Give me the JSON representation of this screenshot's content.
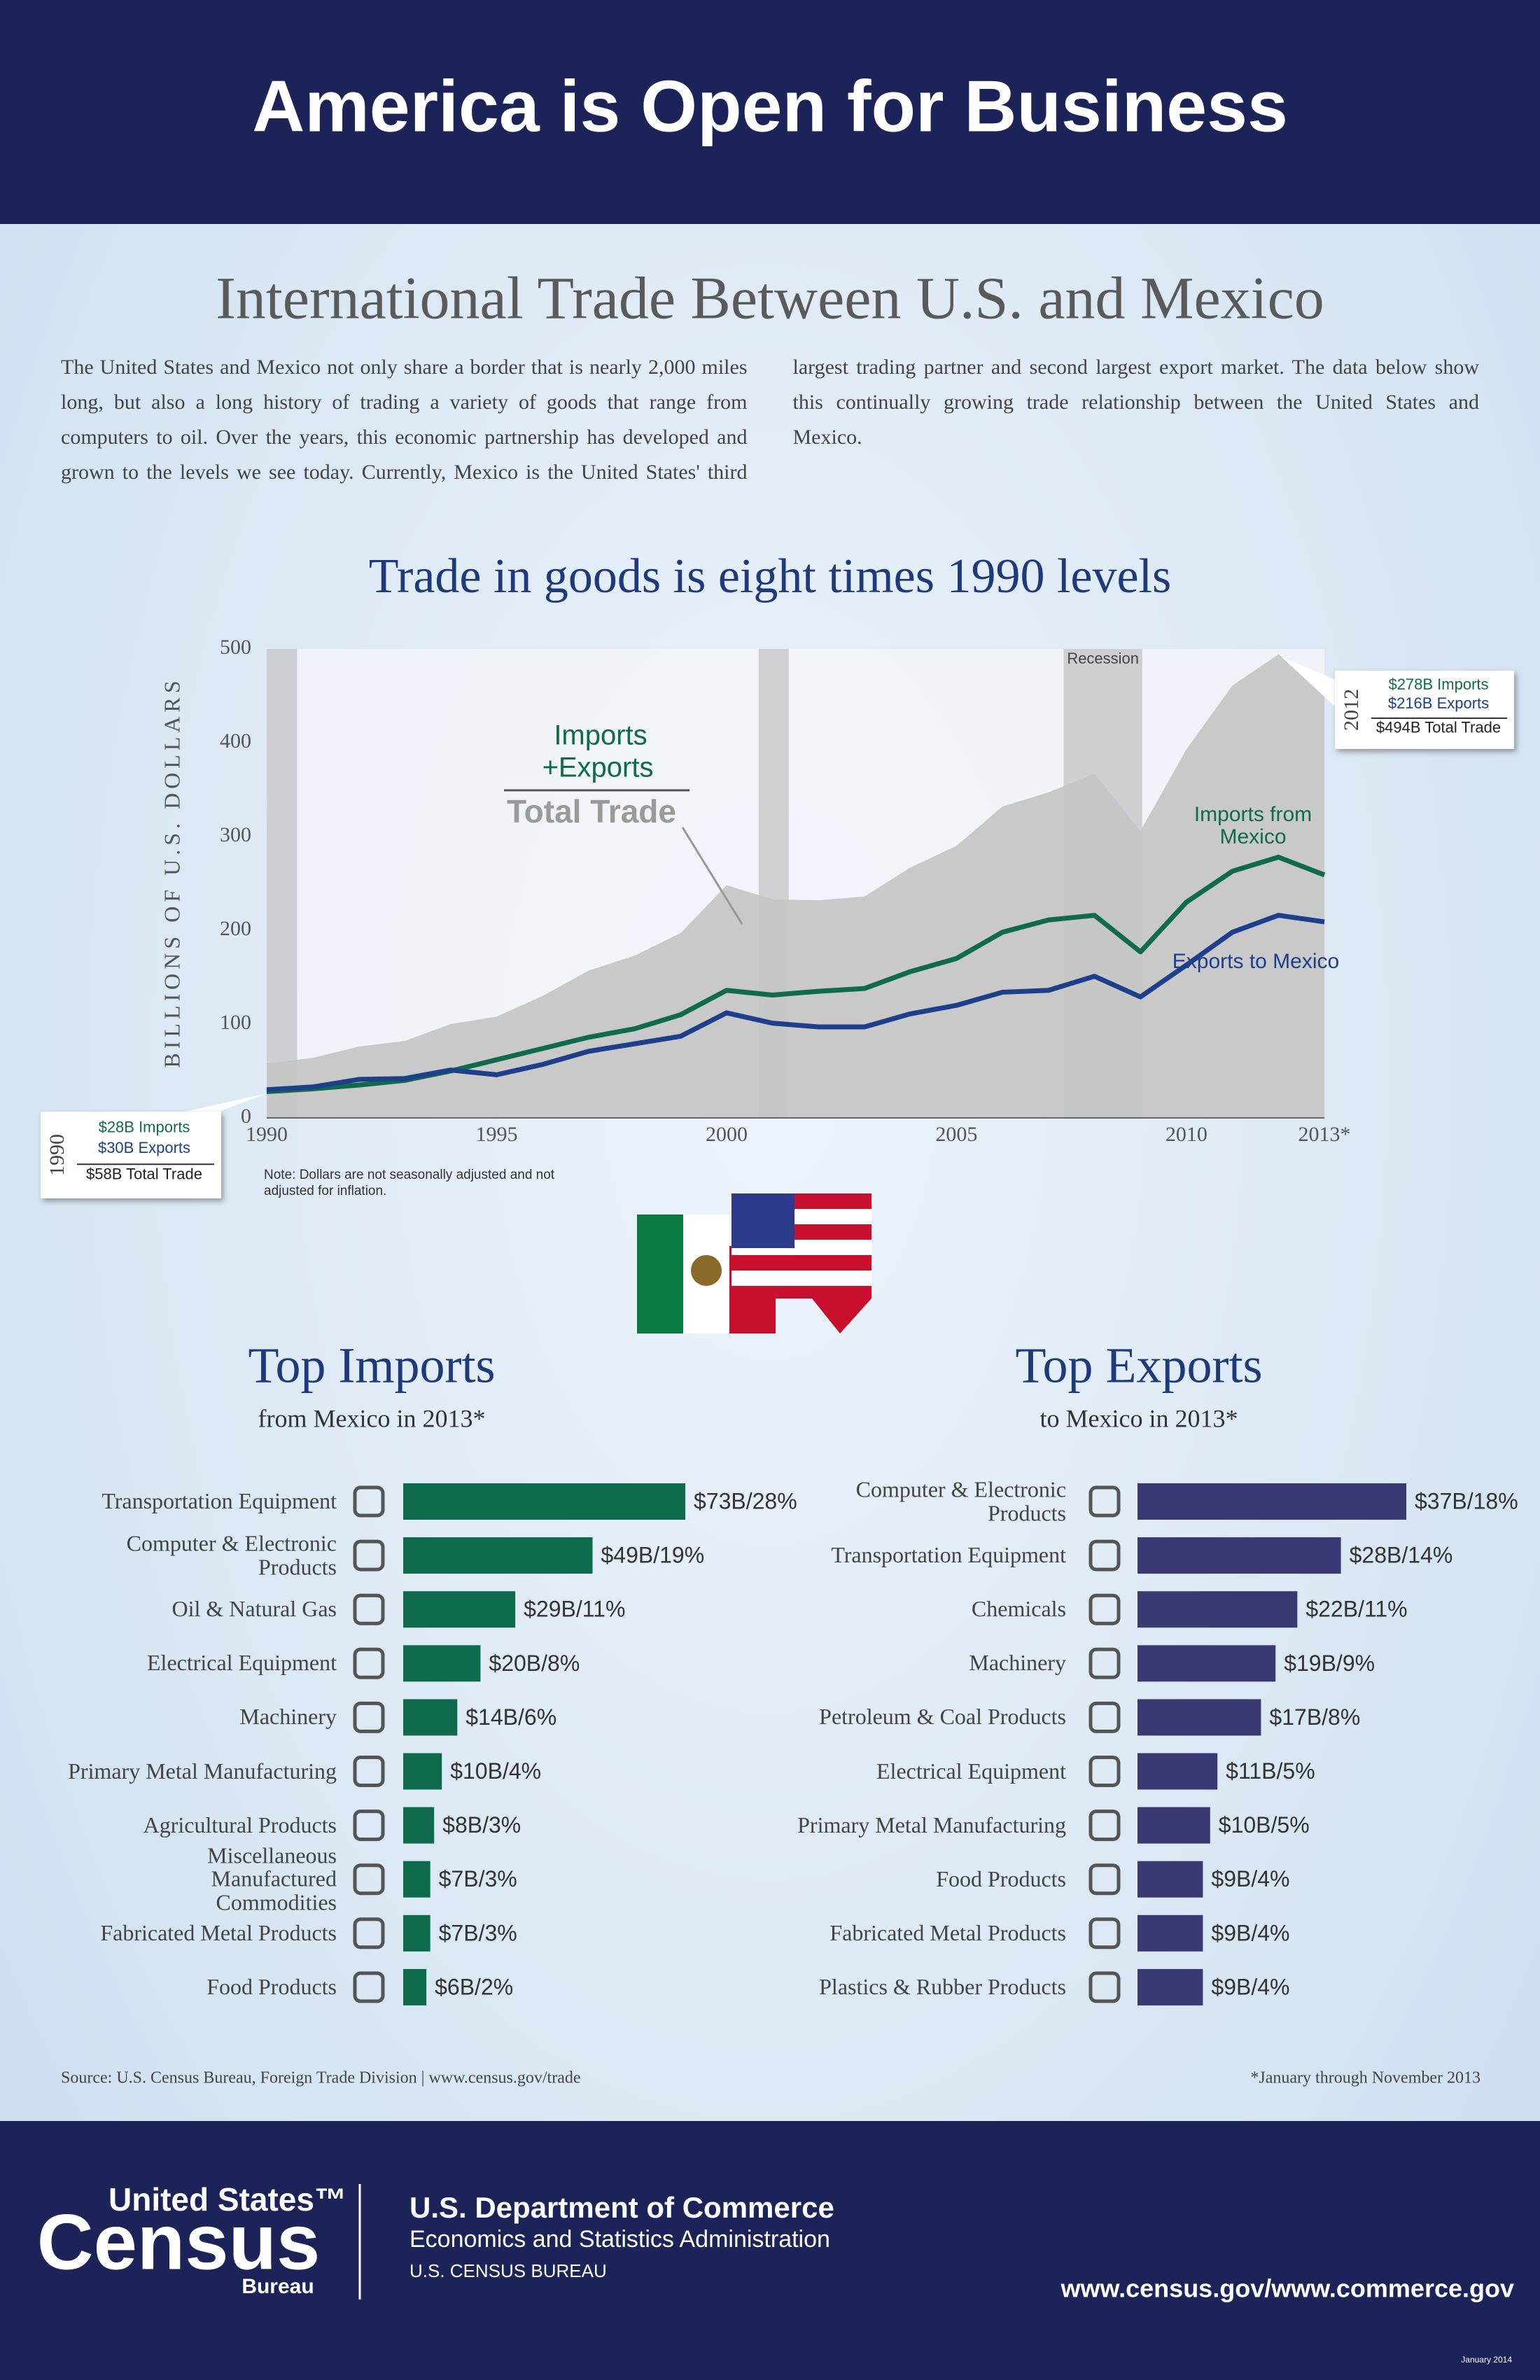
{
  "header": {
    "title": "America is Open for Business"
  },
  "intro": {
    "title": "International Trade Between U.S. and Mexico",
    "text": "The United States and Mexico not only share a border that is nearly 2,000 miles long, but also a long history of trading a variety of goods that range from computers to oil. Over the years, this economic partnership has developed and grown to the levels we see today. Currently, Mexico is the United States' third largest trading partner and second largest export market. The data below show this continually growing trade relationship between the United States and Mexico."
  },
  "chart_data": [
    {
      "type": "line",
      "title": "Trade in goods is eight times 1990 levels",
      "y_label": "BILLIONS OF U.S. DOLLARS",
      "x": [
        1990,
        1991,
        1992,
        1993,
        1994,
        1995,
        1996,
        1997,
        1998,
        1999,
        2000,
        2001,
        2002,
        2003,
        2004,
        2005,
        2006,
        2007,
        2008,
        2009,
        2010,
        2011,
        2012,
        2013
      ],
      "xlim": [
        1990,
        2013
      ],
      "xticks": [
        1990,
        1995,
        2000,
        2005,
        2010,
        {
          "value": 2013,
          "label": "2013*"
        }
      ],
      "ylim": [
        0,
        500
      ],
      "yticks": [
        0,
        100,
        200,
        300,
        400,
        500
      ],
      "series": [
        {
          "name": "Total Trade",
          "color": "#c4c4c4",
          "style": "area",
          "values": [
            58,
            64,
            76,
            82,
            100,
            108,
            130,
            157,
            173,
            197,
            248,
            233,
            232,
            236,
            267,
            290,
            332,
            347,
            367,
            306,
            393,
            461,
            494,
            465
          ]
        },
        {
          "name": "Imports from Mexico",
          "color": "#0f6b4b",
          "style": "line",
          "values": [
            28,
            31,
            35,
            40,
            50,
            62,
            74,
            86,
            95,
            110,
            136,
            131,
            135,
            138,
            156,
            170,
            198,
            211,
            216,
            177,
            230,
            263,
            278,
            259
          ]
        },
        {
          "name": "Exports to Mexico",
          "color": "#1d3f8c",
          "style": "line",
          "values": [
            30,
            33,
            41,
            42,
            51,
            46,
            57,
            71,
            79,
            87,
            112,
            101,
            97,
            97,
            111,
            120,
            134,
            136,
            151,
            129,
            163,
            198,
            216,
            209
          ]
        }
      ],
      "recession_label": "Recession",
      "recessions": [
        [
          1990,
          1990.66
        ],
        [
          2000.7,
          2001.35
        ],
        [
          2007.33,
          2009.04
        ]
      ],
      "sum_labels": [
        "Imports",
        "+Exports"
      ],
      "callouts": [
        {
          "year": "1990",
          "lines": [
            "$28B Imports",
            "$30B Exports",
            "$58B Total Trade"
          ]
        },
        {
          "year": "2012",
          "lines": [
            "$278B Imports",
            "$216B Exports",
            "$494B Total Trade"
          ]
        }
      ],
      "note": "Note: Dollars are not seasonally adjusted and not adjusted for inflation."
    },
    {
      "type": "bar",
      "orientation": "horizontal",
      "title": "Top Imports",
      "subtitle": "from Mexico in 2013*",
      "color": "#0d6b4c",
      "categories": [
        "Transportation Equipment",
        "Computer & Electronic Products",
        "Oil & Natural Gas",
        "Electrical Equipment",
        "Machinery",
        "Primary Metal Manufacturing",
        "Agricultural Products",
        "Miscellaneous Manufactured Commodities",
        "Fabricated Metal Products",
        "Food Products"
      ],
      "values": [
        73,
        49,
        29,
        20,
        14,
        10,
        8,
        7,
        7,
        6
      ],
      "value_labels": [
        "$73B/28%",
        "$49B/19%",
        "$29B/11%",
        "$20B/8%",
        "$14B/6%",
        "$10B/4%",
        "$8B/3%",
        "$7B/3%",
        "$7B/3%",
        "$6B/2%"
      ]
    },
    {
      "type": "bar",
      "orientation": "horizontal",
      "title": "Top Exports",
      "subtitle": "to Mexico in 2013*",
      "color": "#3a3974",
      "categories": [
        "Computer & Electronic Products",
        "Transportation Equipment",
        "Chemicals",
        "Machinery",
        "Petroleum & Coal Products",
        "Electrical Equipment",
        "Primary Metal Manufacturing",
        "Food Products",
        "Fabricated Metal Products",
        "Plastics & Rubber Products"
      ],
      "values": [
        37,
        28,
        22,
        19,
        17,
        11,
        10,
        9,
        9,
        9
      ],
      "value_labels": [
        "$37B/18%",
        "$28B/14%",
        "$22B/11%",
        "$19B/9%",
        "$17B/8%",
        "$11B/5%",
        "$10B/5%",
        "$9B/4%",
        "$9B/4%",
        "$9B/4%"
      ]
    }
  ],
  "footer": {
    "source": "Source: U.S. Census Bureau, Foreign Trade Division | www.census.gov/trade",
    "footnote": "*January through November 2013",
    "logo": [
      "United States™",
      "Census",
      "Bureau"
    ],
    "department": "U.S. Department of Commerce",
    "administration": "Economics and Statistics Administration",
    "bureau": "U.S. CENSUS BUREAU",
    "url": "www.census.gov/www.commerce.gov",
    "date": "January 2014"
  }
}
